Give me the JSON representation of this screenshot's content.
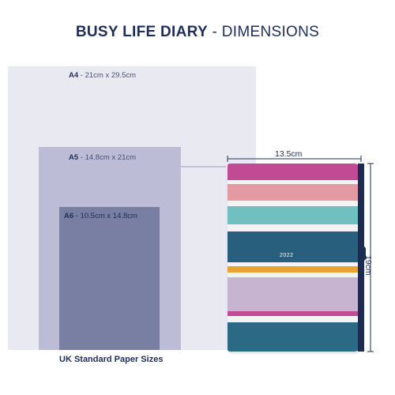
{
  "title": {
    "bold": "BUSY LIFE DIARY",
    "separator": " - ",
    "light": "DIMENSIONS"
  },
  "papers": {
    "a4": {
      "name": "A4",
      "dims": " - 21cm x 29.5cm"
    },
    "a5": {
      "name": "A5",
      "dims": " - 14.8cm x 21cm"
    },
    "a6": {
      "name": "A6",
      "dims": " - 10.5cm x 14.8cm"
    }
  },
  "caption": "UK Standard Paper Sizes",
  "diary": {
    "width_label": "13.5cm",
    "height_label": "19cm",
    "year": "2022",
    "stripes": [
      {
        "color": "#c24a95",
        "weight": 18
      },
      {
        "color": "#f3f3f5",
        "weight": 5
      },
      {
        "color": "#e49aa2",
        "weight": 18
      },
      {
        "color": "#f3f3f5",
        "weight": 6
      },
      {
        "color": "#6fc0be",
        "weight": 20
      },
      {
        "color": "#f3f3f5",
        "weight": 8
      },
      {
        "color": "#285f7c",
        "weight": 34
      },
      {
        "color": "#f3f3f5",
        "weight": 4
      },
      {
        "color": "#e8a336",
        "weight": 7
      },
      {
        "color": "#f3f3f5",
        "weight": 5
      },
      {
        "color": "#c6b4d0",
        "weight": 38
      },
      {
        "color": "#c24a95",
        "weight": 5
      },
      {
        "color": "#f3f3f5",
        "weight": 7
      },
      {
        "color": "#2c6984",
        "weight": 32
      }
    ],
    "band_color": "#1c2b50"
  },
  "colors": {
    "navy": "#1f2e5a",
    "a4_fill": "#e9e9f2",
    "a5_fill": "#bcbcd6",
    "a6_fill": "#787fa2",
    "line": "#9aa0b4"
  }
}
